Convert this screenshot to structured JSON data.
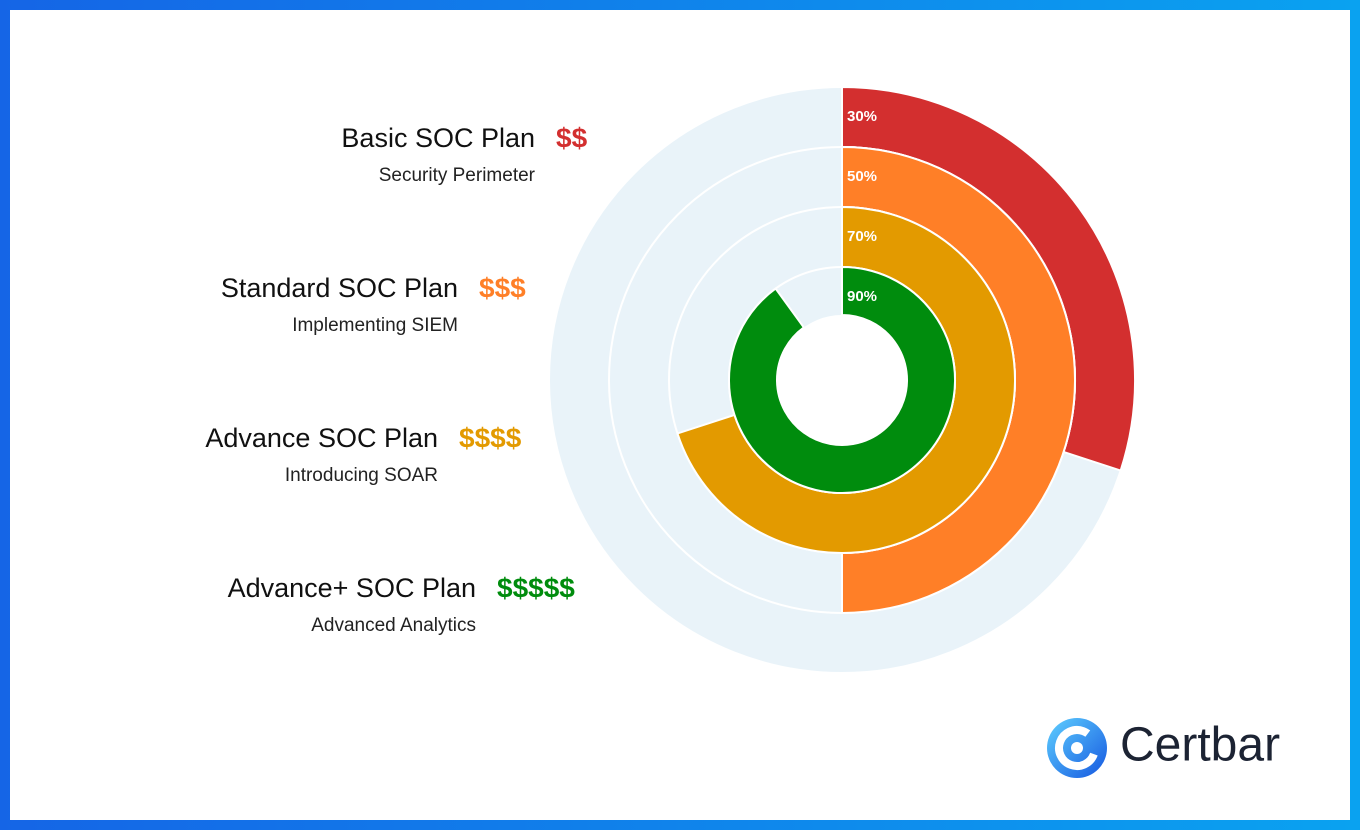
{
  "chart_data": {
    "type": "radial-bar",
    "categories": [
      "Basic SOC Plan",
      "Standard SOC Plan",
      "Advance SOC Plan",
      "Advance+ SOC Plan"
    ],
    "subtitles": [
      "Security Perimeter",
      "Implementing SIEM",
      "Introducing SOAR",
      "Advanced Analytics"
    ],
    "prices": [
      "$$",
      "$$$",
      "$$$$",
      "$$$$$"
    ],
    "values": [
      30,
      50,
      70,
      90
    ],
    "value_labels": [
      "30%",
      "50%",
      "70%",
      "90%"
    ],
    "colors": [
      "#d32f2f",
      "#ff7f27",
      "#e39a00",
      "#008c0d"
    ],
    "ylim": [
      0,
      100
    ]
  },
  "brand": "Certbar"
}
